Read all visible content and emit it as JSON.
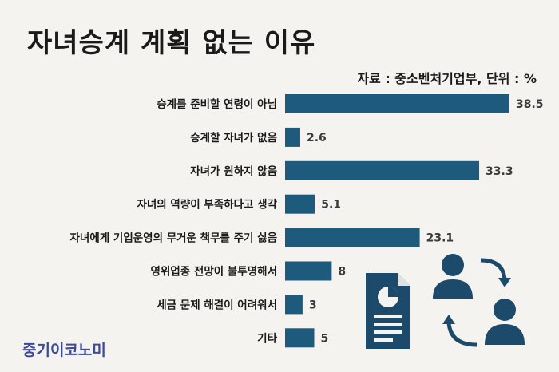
{
  "header": {
    "title": "자녀승계 계획 없는 이유",
    "source": "자료 : 중소벤처기업부, 단위 : %"
  },
  "brand": "중기이코노미",
  "colors": {
    "bar": "#1e5a7c",
    "background": "#f4f3ef",
    "brand": "#3b4a9e",
    "icon": "#1b4a6b"
  },
  "icons": [
    "document-chart-icon",
    "person-icon",
    "arrow-cycle-icon"
  ],
  "chart_data": {
    "type": "bar",
    "orientation": "horizontal",
    "categories": [
      "승계를 준비할 연령이 아님",
      "승계할 자녀가 없음",
      "자녀가 원하지 않음",
      "자녀의 역량이 부족하다고 생각",
      "자녀에게 기업운영의 무거운 책무를 주기 싫음",
      "영위업종 전망이 불투명해서",
      "세금 문제 해결이 어려워서",
      "기타"
    ],
    "values": [
      38.5,
      2.6,
      33.3,
      5.1,
      23.1,
      8,
      3,
      5
    ],
    "value_labels": [
      "38.5",
      "2.6",
      "33.3",
      "5.1",
      "23.1",
      "8",
      "3",
      "5"
    ],
    "xlim": [
      0,
      38.5
    ],
    "grid": false,
    "legend": "none"
  }
}
